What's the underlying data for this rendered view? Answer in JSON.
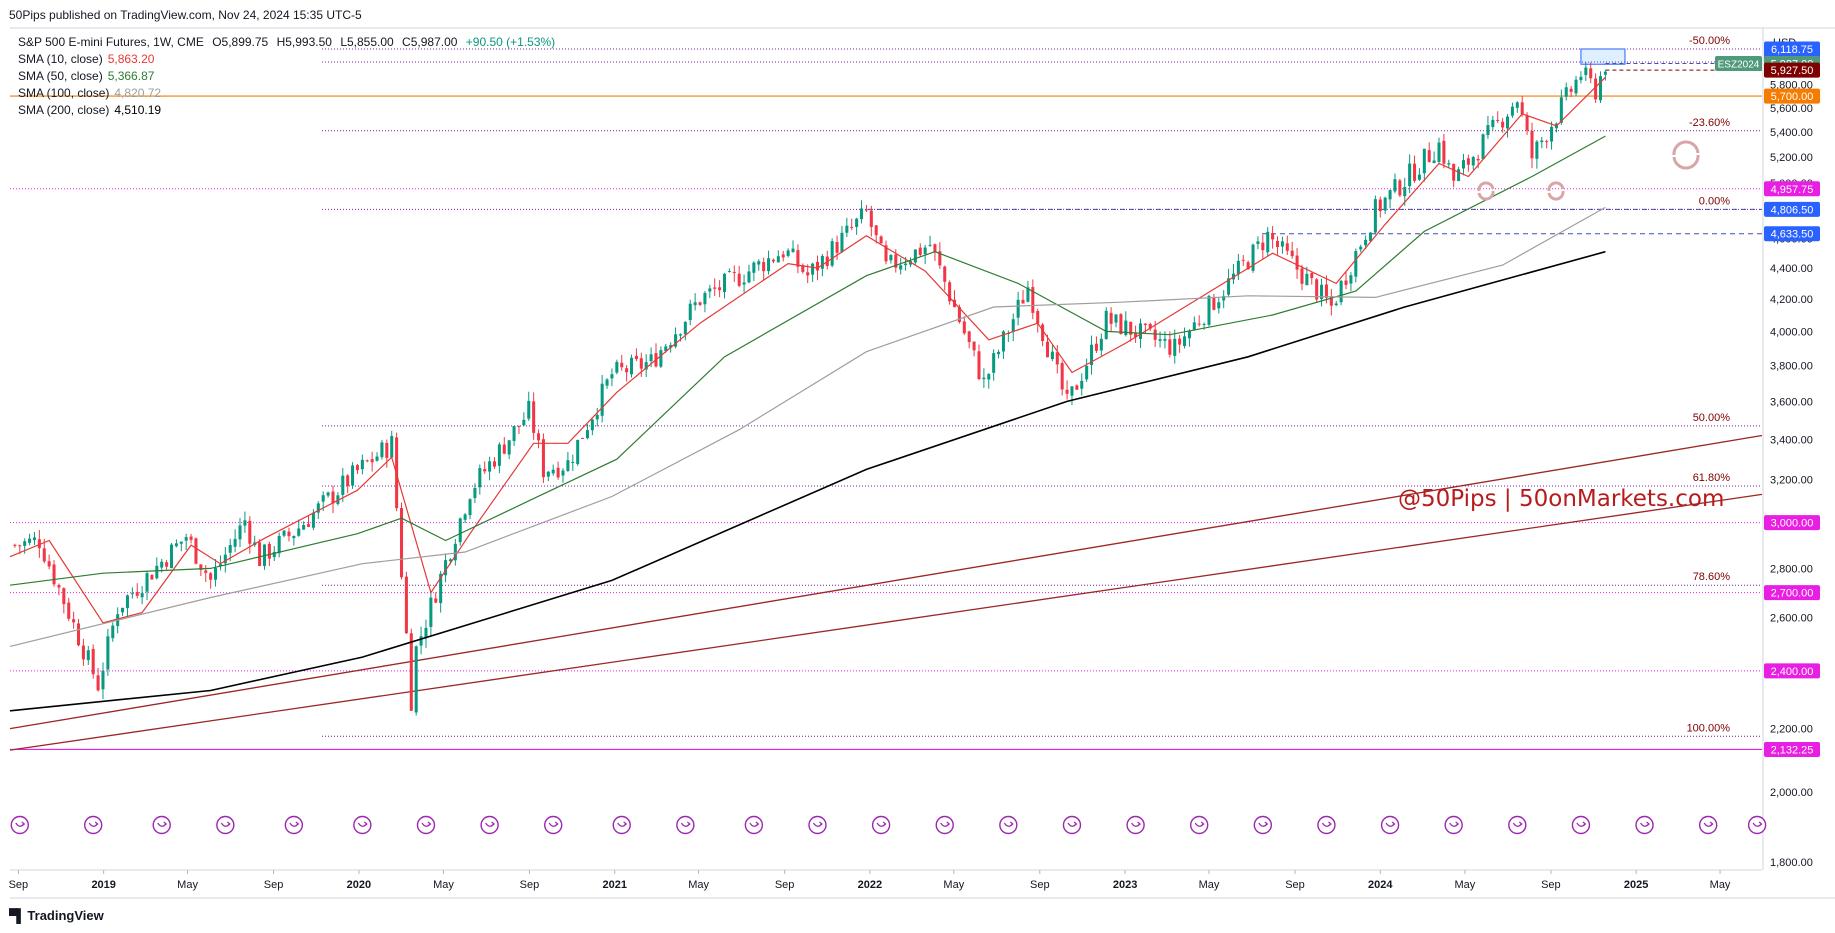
{
  "header": {
    "publisher_line": "50Pips published on TradingView.com, Nov 24, 2024 15:35 UTC-5"
  },
  "legend": {
    "title": "S&P 500 E-mini Futures, 1W, CME",
    "open": "O5,899.75",
    "high": "H5,993.50",
    "low": "L5,855.00",
    "close": "C5,987.00",
    "change": "+90.50 (+1.53%)",
    "sma": [
      {
        "name": "SMA (10, close)",
        "value": "5,863.20",
        "color": "#e53935"
      },
      {
        "name": "SMA (50, close)",
        "value": "5,366.87",
        "color": "#2e7d32"
      },
      {
        "name": "SMA (100, close)",
        "value": "4,820.72",
        "color": "#9e9e9e"
      },
      {
        "name": "SMA (200, close)",
        "value": "4,510.19",
        "color": "#000000"
      }
    ]
  },
  "watermark": "@50Pips | 50onMarkets.com",
  "footer": {
    "brand": "TradingView"
  },
  "colors": {
    "up": "#089981",
    "down": "#f23645",
    "fib": "#7b1fa2",
    "fib_label": "#7f0000",
    "orange": "#f57c00",
    "trend": "#9c2727",
    "magenta": "#e91ee3",
    "blue_label": "#2962ff"
  },
  "chart_data": {
    "type": "candlestick",
    "title": "S&P 500 E-mini Futures, 1W, CME",
    "currency": "USD",
    "y_axis": {
      "scale": "log",
      "range": [
        1700,
        6400
      ],
      "ticks": [
        "6,000.00",
        "5,800.00",
        "5,600.00",
        "5,400.00",
        "5,200.00",
        "5,000.00",
        "4,800.00",
        "4,600.00",
        "4,400.00",
        "4,200.00",
        "4,000.00",
        "3,800.00",
        "3,600.00",
        "3,400.00",
        "3,200.00",
        "3,000.00",
        "2,800.00",
        "2,600.00",
        "2,400.00",
        "2,200.00",
        "2,000.00",
        "1,800.00"
      ],
      "tick_values": [
        6000,
        5800,
        5600,
        5400,
        5200,
        5000,
        4800,
        4600,
        4400,
        4200,
        4000,
        3800,
        3600,
        3400,
        3200,
        3000,
        2800,
        2600,
        2400,
        2200,
        2000,
        1800
      ]
    },
    "x_axis": {
      "range": [
        "2018-08-20",
        "2025-06-30"
      ],
      "ticks": [
        {
          "label": "Sep",
          "date": "2018-09-01",
          "year": false
        },
        {
          "label": "2019",
          "date": "2019-01-01",
          "year": true
        },
        {
          "label": "May",
          "date": "2019-05-01",
          "year": false
        },
        {
          "label": "Sep",
          "date": "2019-09-01",
          "year": false
        },
        {
          "label": "2020",
          "date": "2020-01-01",
          "year": true
        },
        {
          "label": "May",
          "date": "2020-05-01",
          "year": false
        },
        {
          "label": "Sep",
          "date": "2020-09-01",
          "year": false
        },
        {
          "label": "2021",
          "date": "2021-01-01",
          "year": true
        },
        {
          "label": "May",
          "date": "2021-05-01",
          "year": false
        },
        {
          "label": "Sep",
          "date": "2021-09-01",
          "year": false
        },
        {
          "label": "2022",
          "date": "2022-01-01",
          "year": true
        },
        {
          "label": "May",
          "date": "2022-05-01",
          "year": false
        },
        {
          "label": "Sep",
          "date": "2022-09-01",
          "year": false
        },
        {
          "label": "2023",
          "date": "2023-01-01",
          "year": true
        },
        {
          "label": "May",
          "date": "2023-05-01",
          "year": false
        },
        {
          "label": "Sep",
          "date": "2023-09-01",
          "year": false
        },
        {
          "label": "2024",
          "date": "2024-01-01",
          "year": true
        },
        {
          "label": "May",
          "date": "2024-05-01",
          "year": false
        },
        {
          "label": "Sep",
          "date": "2024-09-01",
          "year": false
        },
        {
          "label": "2025",
          "date": "2025-01-01",
          "year": true
        },
        {
          "label": "May",
          "date": "2025-05-01",
          "year": false
        }
      ]
    },
    "price_anchors": [
      {
        "date": "2018-08-27",
        "price": 2900
      },
      {
        "date": "2018-10-01",
        "price": 2920
      },
      {
        "date": "2018-12-24",
        "price": 2350
      },
      {
        "date": "2019-01-21",
        "price": 2640
      },
      {
        "date": "2019-04-29",
        "price": 2940
      },
      {
        "date": "2019-06-03",
        "price": 2750
      },
      {
        "date": "2019-07-22",
        "price": 3010
      },
      {
        "date": "2019-08-12",
        "price": 2840
      },
      {
        "date": "2019-10-01",
        "price": 2960
      },
      {
        "date": "2019-12-30",
        "price": 3240
      },
      {
        "date": "2020-02-17",
        "price": 3380
      },
      {
        "date": "2020-03-16",
        "price": 2300
      },
      {
        "date": "2020-03-23",
        "price": 2480
      },
      {
        "date": "2020-06-08",
        "price": 3150
      },
      {
        "date": "2020-09-01",
        "price": 3550
      },
      {
        "date": "2020-09-21",
        "price": 3250
      },
      {
        "date": "2020-10-26",
        "price": 3280
      },
      {
        "date": "2020-12-28",
        "price": 3750
      },
      {
        "date": "2021-02-22",
        "price": 3820
      },
      {
        "date": "2021-05-03",
        "price": 4200
      },
      {
        "date": "2021-09-01",
        "price": 4520
      },
      {
        "date": "2021-10-04",
        "price": 4350
      },
      {
        "date": "2021-12-27",
        "price": 4780
      },
      {
        "date": "2022-01-24",
        "price": 4400
      },
      {
        "date": "2022-03-28",
        "price": 4560
      },
      {
        "date": "2022-06-13",
        "price": 3700
      },
      {
        "date": "2022-08-15",
        "price": 4280
      },
      {
        "date": "2022-10-10",
        "price": 3580
      },
      {
        "date": "2022-12-05",
        "price": 4070
      },
      {
        "date": "2023-03-13",
        "price": 3900
      },
      {
        "date": "2023-07-24",
        "price": 4620
      },
      {
        "date": "2023-10-23",
        "price": 4150
      },
      {
        "date": "2023-12-25",
        "price": 4800
      },
      {
        "date": "2024-03-25",
        "price": 5300
      },
      {
        "date": "2024-04-15",
        "price": 5020
      },
      {
        "date": "2024-07-15",
        "price": 5680
      },
      {
        "date": "2024-08-05",
        "price": 5200
      },
      {
        "date": "2024-10-14",
        "price": 5900
      },
      {
        "date": "2024-11-04",
        "price": 5750
      },
      {
        "date": "2024-11-18",
        "price": 5987
      }
    ],
    "series": [
      {
        "name": "SMA (10, close)",
        "color": "#e53935",
        "points": [
          [
            "2018-08-20",
            2850
          ],
          [
            "2018-10-15",
            2920
          ],
          [
            "2018-12-31",
            2580
          ],
          [
            "2019-02-25",
            2620
          ],
          [
            "2019-05-06",
            2900
          ],
          [
            "2019-06-17",
            2820
          ],
          [
            "2019-08-19",
            2930
          ],
          [
            "2019-12-30",
            3150
          ],
          [
            "2020-02-17",
            3310
          ],
          [
            "2020-04-13",
            2700
          ],
          [
            "2020-06-08",
            2950
          ],
          [
            "2020-09-07",
            3380
          ],
          [
            "2020-10-26",
            3380
          ],
          [
            "2021-01-04",
            3650
          ],
          [
            "2021-05-03",
            4050
          ],
          [
            "2021-09-06",
            4430
          ],
          [
            "2021-10-18",
            4400
          ],
          [
            "2021-12-27",
            4620
          ],
          [
            "2022-03-21",
            4380
          ],
          [
            "2022-06-20",
            3950
          ],
          [
            "2022-08-29",
            4050
          ],
          [
            "2022-10-17",
            3760
          ],
          [
            "2023-01-02",
            3930
          ],
          [
            "2023-07-31",
            4500
          ],
          [
            "2023-10-30",
            4300
          ],
          [
            "2024-01-08",
            4700
          ],
          [
            "2024-03-25",
            5150
          ],
          [
            "2024-05-06",
            5050
          ],
          [
            "2024-07-22",
            5550
          ],
          [
            "2024-09-09",
            5450
          ],
          [
            "2024-11-18",
            5863.2
          ]
        ]
      },
      {
        "name": "SMA (50, close)",
        "color": "#2e7d32",
        "points": [
          [
            "2018-08-20",
            2730
          ],
          [
            "2018-12-31",
            2780
          ],
          [
            "2019-06-03",
            2800
          ],
          [
            "2019-12-30",
            2950
          ],
          [
            "2020-03-02",
            3020
          ],
          [
            "2020-05-04",
            2920
          ],
          [
            "2020-09-07",
            3110
          ],
          [
            "2021-01-04",
            3300
          ],
          [
            "2021-06-07",
            3850
          ],
          [
            "2021-12-27",
            4350
          ],
          [
            "2022-04-04",
            4510
          ],
          [
            "2022-08-01",
            4300
          ],
          [
            "2022-12-05",
            4000
          ],
          [
            "2023-03-06",
            3980
          ],
          [
            "2023-07-31",
            4100
          ],
          [
            "2023-11-27",
            4250
          ],
          [
            "2024-03-04",
            4650
          ],
          [
            "2024-08-05",
            5050
          ],
          [
            "2024-11-18",
            5366.87
          ]
        ]
      },
      {
        "name": "SMA (100, close)",
        "color": "#9e9e9e",
        "points": [
          [
            "2018-08-20",
            2490
          ],
          [
            "2019-06-03",
            2680
          ],
          [
            "2020-01-06",
            2820
          ],
          [
            "2020-06-01",
            2870
          ],
          [
            "2020-12-28",
            3120
          ],
          [
            "2021-06-28",
            3450
          ],
          [
            "2021-12-27",
            3880
          ],
          [
            "2022-06-27",
            4150
          ],
          [
            "2022-12-26",
            4180
          ],
          [
            "2023-06-26",
            4220
          ],
          [
            "2023-12-25",
            4210
          ],
          [
            "2024-06-24",
            4420
          ],
          [
            "2024-11-18",
            4820.72
          ]
        ]
      },
      {
        "name": "SMA (200, close)",
        "color": "#000000",
        "points": [
          [
            "2018-08-20",
            2260
          ],
          [
            "2019-06-03",
            2330
          ],
          [
            "2020-01-06",
            2450
          ],
          [
            "2020-12-28",
            2750
          ],
          [
            "2021-12-27",
            3250
          ],
          [
            "2022-10-10",
            3600
          ],
          [
            "2023-06-26",
            3850
          ],
          [
            "2024-02-05",
            4150
          ],
          [
            "2024-11-18",
            4510.19
          ]
        ]
      }
    ],
    "horizontal_levels": [
      {
        "price": 6118.75,
        "label": "-50.00%",
        "kind": "fib",
        "axis_tag": "6,118.75",
        "tag_color": "#2962ff"
      },
      {
        "price": 5410,
        "label": "-23.60%",
        "kind": "fib"
      },
      {
        "price": 4806.5,
        "label": "0.00%",
        "kind": "fib",
        "axis_tag": "4,806.50",
        "tag_color": "#2962ff"
      },
      {
        "price": 3470,
        "label": "50.00%",
        "kind": "fib"
      },
      {
        "price": 3170,
        "label": "61.80%",
        "kind": "fib"
      },
      {
        "price": 2730,
        "label": "78.60%",
        "kind": "fib"
      },
      {
        "price": 2175,
        "label": "100.00%",
        "kind": "fib"
      },
      {
        "price": 6000,
        "kind": "fib",
        "axis_tag": "6,000.00",
        "tag_color": "#2962ff"
      },
      {
        "price": 5700,
        "kind": "orange",
        "axis_tag": "5,700.00",
        "tag_color": "#f57c00"
      },
      {
        "price": 4957.75,
        "kind": "magenta",
        "axis_tag": "4,957.75",
        "tag_color": "#e91ee3"
      },
      {
        "price": 4633.5,
        "kind": "blue-dash",
        "axis_tag": "4,633.50",
        "tag_color": "#2962ff"
      },
      {
        "price": 3000,
        "kind": "magenta",
        "axis_tag": "3,000.00",
        "tag_color": "#e91ee3"
      },
      {
        "price": 2700,
        "kind": "magenta",
        "axis_tag": "2,700.00",
        "tag_color": "#e91ee3"
      },
      {
        "price": 2400,
        "kind": "magenta",
        "axis_tag": "2,400.00",
        "tag_color": "#e91ee3"
      },
      {
        "price": 2132.25,
        "kind": "magenta-solid",
        "axis_tag": "2,132.25",
        "tag_color": "#e91ee3"
      }
    ],
    "current_price_tags": [
      {
        "ticker": "ESZ2024",
        "value": "5,987.00",
        "price": 5987,
        "color": "#4e9a7a"
      },
      {
        "value": "5,927.50",
        "price": 5927.5,
        "color": "#7f0000"
      }
    ],
    "trendlines": [
      {
        "from": [
          "2018-08-20",
          2200
        ],
        "to": [
          "2025-06-30",
          3420
        ]
      },
      {
        "from": [
          "2018-08-20",
          2130
        ],
        "to": [
          "2025-06-30",
          3130
        ]
      }
    ],
    "event_marker_dates": [
      "2018-09-03",
      "2018-12-17",
      "2019-03-25",
      "2019-06-24",
      "2019-09-30",
      "2020-01-06",
      "2020-04-06",
      "2020-07-06",
      "2020-10-05",
      "2021-01-11",
      "2021-04-12",
      "2021-07-19",
      "2021-10-18",
      "2022-01-17",
      "2022-04-18",
      "2022-07-18",
      "2022-10-17",
      "2023-01-16",
      "2023-04-17",
      "2023-07-17",
      "2023-10-16",
      "2024-01-15",
      "2024-04-15",
      "2024-07-15",
      "2024-10-14",
      "2025-01-13",
      "2025-04-14",
      "2025-06-23"
    ]
  }
}
